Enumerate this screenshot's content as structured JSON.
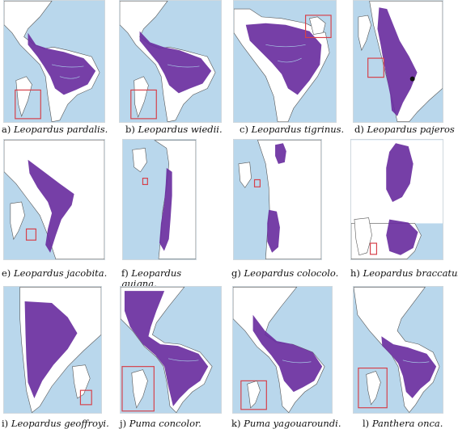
{
  "panels": [
    {
      "letter": "a)",
      "species": "Leopardus pardalis."
    },
    {
      "letter": "b)",
      "species": "Leopardus wiedii."
    },
    {
      "letter": "c)",
      "species": "Leopardus tigrinus."
    },
    {
      "letter": "d)",
      "species": "Leopardus pajeros"
    },
    {
      "letter": "e)",
      "species": "Leopardus jacobita."
    },
    {
      "letter": "f)",
      "species": "Leopardus guigna."
    },
    {
      "letter": "g)",
      "species": "Leopardus colocolo."
    },
    {
      "letter": "h)",
      "species": "Leopardus braccatus."
    },
    {
      "letter": "i)",
      "species": "Leopardus geoffroyi."
    },
    {
      "letter": "j)",
      "species": "Puma concolor."
    },
    {
      "letter": "k)",
      "species": "Puma yagouaroundi."
    },
    {
      "letter": "l)",
      "species": "Panthera onca."
    }
  ],
  "colors": {
    "sea": "#b9d7ec",
    "land": "#ffffff",
    "range": "#6a2fa0",
    "inset": "#d6404a"
  }
}
